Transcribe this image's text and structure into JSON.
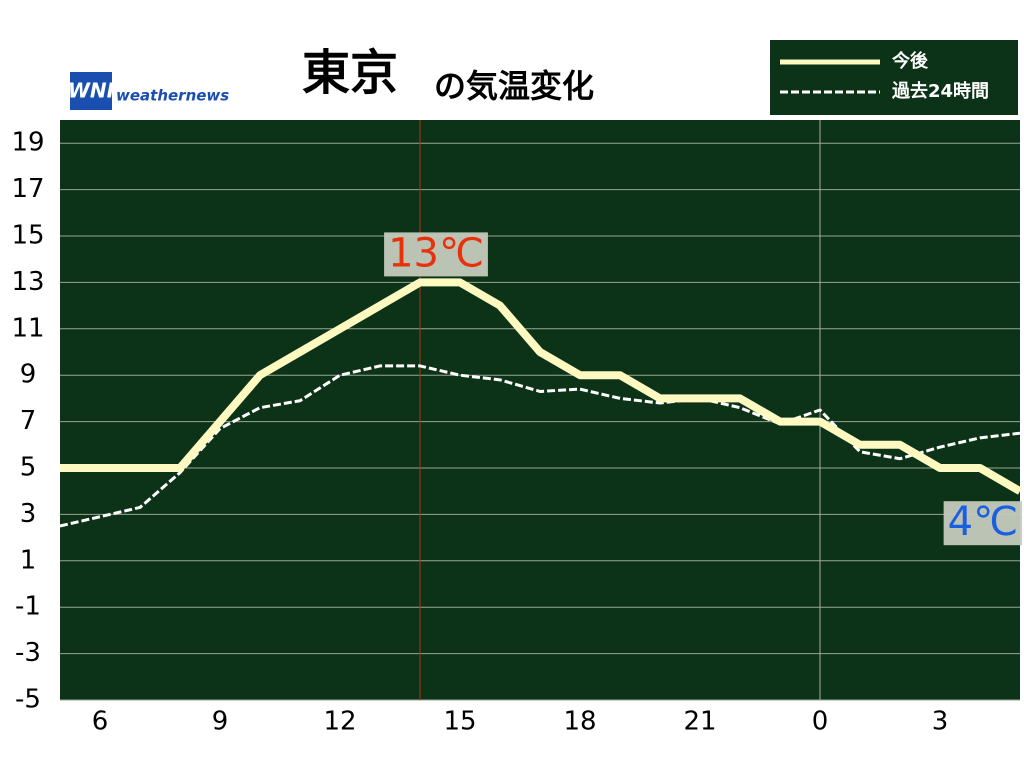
{
  "chart_data": {
    "type": "line",
    "title": "東京",
    "title_suffix": "の気温変化",
    "brand": {
      "logo": "WNI",
      "name": "weathernews"
    },
    "x": [
      5,
      6,
      7,
      8,
      9,
      10,
      11,
      12,
      13,
      14,
      15,
      16,
      17,
      18,
      19,
      20,
      21,
      22,
      23,
      24,
      25,
      26,
      27,
      28,
      29
    ],
    "xlim": [
      5,
      29
    ],
    "xticks": [
      6,
      9,
      12,
      15,
      18,
      21,
      {
        "value": 24,
        "label": "0"
      },
      {
        "value": 27,
        "label": "3"
      }
    ],
    "ylim": [
      -5,
      20
    ],
    "yticks": [
      -5,
      -3,
      -1,
      1,
      3,
      5,
      7,
      9,
      11,
      13,
      15,
      17,
      19
    ],
    "grid": true,
    "series": [
      {
        "name": "今後",
        "color": "#fdf9c0",
        "dashed": false,
        "values": [
          5,
          5,
          5,
          5,
          7,
          9,
          10,
          11,
          12,
          13,
          13,
          12,
          10,
          9,
          9,
          8,
          8,
          8,
          7,
          7,
          6,
          6,
          5,
          5,
          4
        ]
      },
      {
        "name": "過去24時間",
        "color": "#ffffff",
        "dashed": true,
        "values": [
          2.5,
          2.9,
          3.3,
          4.8,
          6.7,
          7.6,
          7.9,
          9.0,
          9.4,
          9.4,
          9.0,
          8.8,
          8.3,
          8.4,
          8.0,
          7.8,
          8.0,
          7.6,
          6.9,
          7.5,
          5.7,
          5.4,
          5.9,
          6.3,
          6.5
        ]
      }
    ],
    "vlines": [
      {
        "x": 14,
        "color": "#b03010"
      },
      {
        "x": 24,
        "color": "#aaaaaa"
      }
    ],
    "annotations": [
      {
        "label": "13℃",
        "x": 14,
        "value": 13,
        "color": "#e8300a"
      },
      {
        "label": "4℃",
        "x": 29,
        "value": 4,
        "color": "#1a5fe0"
      }
    ],
    "background": "#0c3317"
  }
}
